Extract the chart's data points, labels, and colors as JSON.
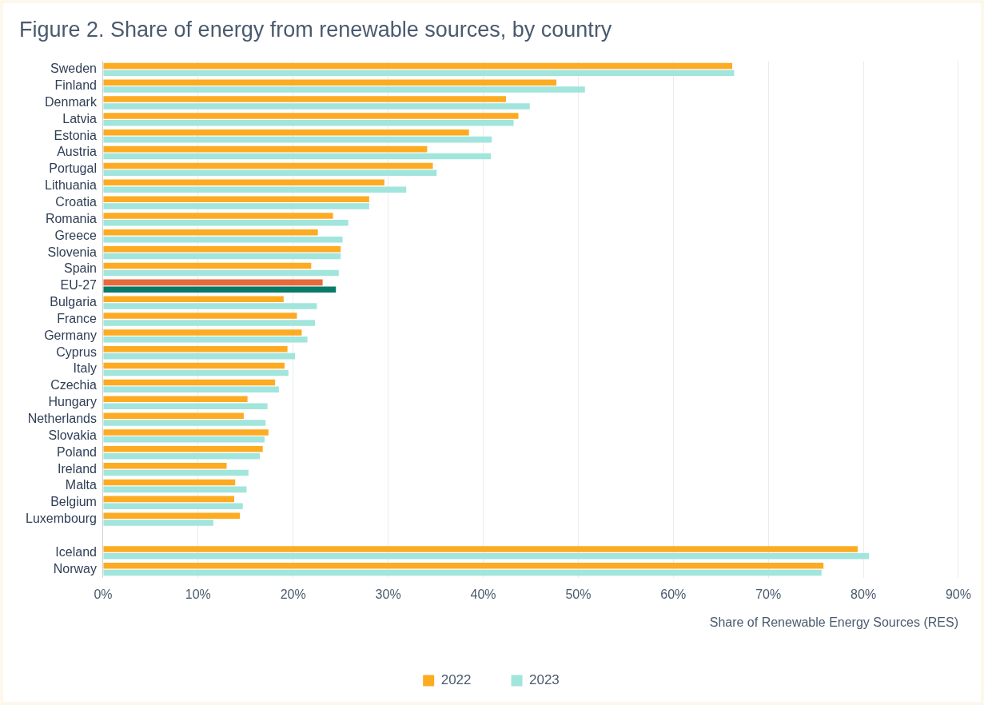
{
  "chart_data": {
    "type": "bar",
    "orientation": "horizontal",
    "title": "Figure 2. Share of energy from renewable sources, by country",
    "xlabel": "Share of Renewable Energy Sources (RES)",
    "categories": [
      "Sweden",
      "Finland",
      "Denmark",
      "Latvia",
      "Estonia",
      "Austria",
      "Portugal",
      "Lithuania",
      "Croatia",
      "Romania",
      "Greece",
      "Slovenia",
      "Spain",
      "EU-27",
      "Bulgaria",
      "France",
      "Germany",
      "Cyprus",
      "Italy",
      "Czechia",
      "Hungary",
      "Netherlands",
      "Slovakia",
      "Poland",
      "Ireland",
      "Malta",
      "Belgium",
      "Luxembourg",
      null,
      "Iceland",
      "Norway"
    ],
    "series": [
      {
        "name": "2022",
        "color": "#fdab22",
        "colors": [
          "#fdab22",
          "#fdab22",
          "#fdab22",
          "#fdab22",
          "#fdab22",
          "#fdab22",
          "#fdab22",
          "#fdab22",
          "#fdab22",
          "#fdab22",
          "#fdab22",
          "#fdab22",
          "#fdab22",
          "#e66a3c",
          "#fdab22",
          "#fdab22",
          "#fdab22",
          "#fdab22",
          "#fdab22",
          "#fdab22",
          "#fdab22",
          "#fdab22",
          "#fdab22",
          "#fdab22",
          "#fdab22",
          "#fdab22",
          "#fdab22",
          "#fdab22",
          "#fdab22",
          "#fdab22",
          "#fdab22"
        ],
        "values": [
          66.2,
          47.7,
          42.4,
          43.7,
          38.5,
          34.1,
          34.7,
          29.6,
          28.0,
          24.2,
          22.6,
          25.0,
          21.9,
          23.1,
          19.0,
          20.4,
          20.9,
          19.4,
          19.1,
          18.1,
          15.2,
          14.8,
          17.4,
          16.8,
          13.0,
          13.9,
          13.8,
          14.4,
          null,
          79.4,
          75.8
        ]
      },
      {
        "name": "2023",
        "color": "#a1e5dc",
        "colors": [
          "#a1e5dc",
          "#a1e5dc",
          "#a1e5dc",
          "#a1e5dc",
          "#a1e5dc",
          "#a1e5dc",
          "#a1e5dc",
          "#a1e5dc",
          "#a1e5dc",
          "#a1e5dc",
          "#a1e5dc",
          "#a1e5dc",
          "#a1e5dc",
          "#087a68",
          "#a1e5dc",
          "#a1e5dc",
          "#a1e5dc",
          "#a1e5dc",
          "#a1e5dc",
          "#a1e5dc",
          "#a1e5dc",
          "#a1e5dc",
          "#a1e5dc",
          "#a1e5dc",
          "#a1e5dc",
          "#a1e5dc",
          "#a1e5dc",
          "#a1e5dc",
          "#a1e5dc",
          "#a1e5dc",
          "#a1e5dc"
        ],
        "values": [
          66.4,
          50.7,
          44.9,
          43.2,
          40.9,
          40.8,
          35.1,
          31.9,
          28.0,
          25.8,
          25.2,
          25.0,
          24.8,
          24.5,
          22.5,
          22.3,
          21.5,
          20.2,
          19.5,
          18.5,
          17.3,
          17.1,
          17.0,
          16.5,
          15.3,
          15.1,
          14.7,
          11.6,
          null,
          80.6,
          75.6
        ]
      }
    ],
    "xlim": [
      0,
      90
    ],
    "xticks": [
      {
        "value": 0,
        "label": "0%"
      },
      {
        "value": 10,
        "label": "10%"
      },
      {
        "value": 20,
        "label": "20%"
      },
      {
        "value": 30,
        "label": "30%"
      },
      {
        "value": 40,
        "label": "40%"
      },
      {
        "value": 50,
        "label": "50%"
      },
      {
        "value": 60,
        "label": "60%"
      },
      {
        "value": 70,
        "label": "70%"
      },
      {
        "value": 80,
        "label": "80%"
      },
      {
        "value": 90,
        "label": "90%"
      }
    ],
    "grid": "x",
    "legend": "bottom"
  }
}
